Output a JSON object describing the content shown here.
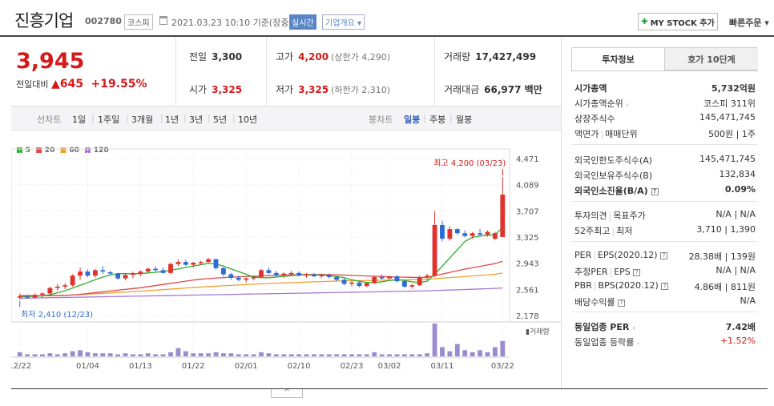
{
  "header": {
    "name": "진흥기업",
    "code": "002780",
    "market": "코스피",
    "datetime": "2021.03.23 10:10  기준(장중)",
    "realtime": "실시간",
    "overview": "기업개요 ▾",
    "mystock": "MY STOCK 추가",
    "quick_order": "빠른주문 ▾"
  },
  "price": {
    "current": "3,945",
    "change_label": "전일대비",
    "change_arrow": "▲",
    "change": "645",
    "change_pct": "+19.55%",
    "prev_close_label": "전일",
    "prev_close": "3,300",
    "open_label": "시가",
    "open": "3,325",
    "high_label": "고가",
    "high": "4,200",
    "high_sub": "(상한가 4,290)",
    "low_label": "저가",
    "low": "3,325",
    "low_sub": "(하한가 2,310)",
    "volume_label": "거래량",
    "volume": "17,427,499",
    "amount_label": "거래대금",
    "amount": "66,977 백만"
  },
  "period_tabs": {
    "line_label": "선차트",
    "line_items": [
      "1일",
      "1주일",
      "3개월",
      "1년",
      "3년",
      "5년",
      "10년"
    ],
    "candle_label": "봉차트",
    "candle_items": [
      "일봉",
      "주봉",
      "월봉"
    ],
    "candle_active": "일봉"
  },
  "chart_data": {
    "type": "candlestick",
    "legend": [
      {
        "name": "5",
        "color": "#2fae2f"
      },
      {
        "name": "20",
        "color": "#e04848"
      },
      {
        "name": "60",
        "color": "#f0a030"
      },
      {
        "name": "120",
        "color": "#a57ad6"
      }
    ],
    "y_ticks": [
      4471,
      4089,
      3707,
      3325,
      2943,
      2561,
      2178
    ],
    "y_tick_labels": [
      "4,471",
      "4,089",
      "3,707",
      "3,325",
      "2,943",
      "2,561",
      "2,178"
    ],
    "ylim": [
      2178,
      4471
    ],
    "x_tick_labels": [
      "12/22",
      "01/04",
      "01/13",
      "01/22",
      "02/01",
      "02/10",
      "02/23",
      "03/02",
      "03/11",
      "03/22"
    ],
    "x_tick_indices": [
      0,
      9,
      16,
      23,
      30,
      37,
      44,
      49,
      56,
      64
    ],
    "high_annotation": "최고 4,200 (03/23)",
    "low_annotation": "최저 2,410 (12/23)",
    "volume_label": "거래량",
    "candles": [
      [
        2440,
        2500,
        2410,
        2460
      ],
      [
        2460,
        2480,
        2420,
        2440
      ],
      [
        2440,
        2500,
        2430,
        2480
      ],
      [
        2480,
        2520,
        2440,
        2500
      ],
      [
        2500,
        2600,
        2470,
        2580
      ],
      [
        2580,
        2640,
        2540,
        2600
      ],
      [
        2600,
        2650,
        2560,
        2620
      ],
      [
        2620,
        2780,
        2600,
        2760
      ],
      [
        2760,
        2880,
        2700,
        2820
      ],
      [
        2820,
        2850,
        2740,
        2760
      ],
      [
        2760,
        2860,
        2730,
        2840
      ],
      [
        2840,
        2900,
        2790,
        2820
      ],
      [
        2810,
        2830,
        2760,
        2790
      ],
      [
        2790,
        2800,
        2700,
        2720
      ],
      [
        2720,
        2790,
        2690,
        2770
      ],
      [
        2770,
        2820,
        2720,
        2790
      ],
      [
        2790,
        2840,
        2750,
        2820
      ],
      [
        2820,
        2880,
        2800,
        2860
      ],
      [
        2860,
        2900,
        2820,
        2840
      ],
      [
        2840,
        2880,
        2790,
        2800
      ],
      [
        2800,
        2950,
        2780,
        2930
      ],
      [
        2930,
        3000,
        2900,
        2960
      ],
      [
        2960,
        2990,
        2900,
        2920
      ],
      [
        2920,
        2960,
        2880,
        2950
      ],
      [
        2950,
        2980,
        2920,
        2960
      ],
      [
        2960,
        3020,
        2940,
        3000
      ],
      [
        3000,
        3010,
        2850,
        2870
      ],
      [
        2870,
        2890,
        2750,
        2780
      ],
      [
        2780,
        2800,
        2700,
        2730
      ],
      [
        2730,
        2760,
        2680,
        2700
      ],
      [
        2700,
        2740,
        2660,
        2720
      ],
      [
        2720,
        2760,
        2690,
        2740
      ],
      [
        2740,
        2860,
        2720,
        2840
      ],
      [
        2840,
        2880,
        2780,
        2800
      ],
      [
        2800,
        2830,
        2740,
        2770
      ],
      [
        2770,
        2810,
        2730,
        2790
      ],
      [
        2790,
        2830,
        2760,
        2800
      ],
      [
        2800,
        2820,
        2750,
        2760
      ],
      [
        2760,
        2800,
        2730,
        2780
      ],
      [
        2780,
        2800,
        2740,
        2750
      ],
      [
        2750,
        2790,
        2720,
        2770
      ],
      [
        2770,
        2790,
        2720,
        2740
      ],
      [
        2740,
        2760,
        2680,
        2700
      ],
      [
        2700,
        2720,
        2620,
        2640
      ],
      [
        2640,
        2680,
        2600,
        2660
      ],
      [
        2660,
        2680,
        2590,
        2610
      ],
      [
        2610,
        2660,
        2590,
        2650
      ],
      [
        2650,
        2760,
        2640,
        2740
      ],
      [
        2740,
        2780,
        2700,
        2720
      ],
      [
        2720,
        2760,
        2690,
        2750
      ],
      [
        2750,
        2770,
        2660,
        2680
      ],
      [
        2680,
        2700,
        2580,
        2600
      ],
      [
        2600,
        2640,
        2570,
        2620
      ],
      [
        2620,
        2760,
        2610,
        2740
      ],
      [
        2740,
        2790,
        2700,
        2760
      ],
      [
        2760,
        3700,
        2740,
        3500
      ],
      [
        3500,
        3560,
        3260,
        3300
      ],
      [
        3300,
        3480,
        3270,
        3440
      ],
      [
        3440,
        3460,
        3360,
        3380
      ],
      [
        3380,
        3420,
        3320,
        3340
      ],
      [
        3340,
        3400,
        3300,
        3380
      ],
      [
        3380,
        3440,
        3340,
        3360
      ],
      [
        3360,
        3420,
        3330,
        3400
      ],
      [
        3300,
        3400,
        3280,
        3380
      ],
      [
        3325,
        4200,
        3325,
        3945
      ]
    ],
    "volume": [
      4,
      2,
      2,
      2,
      3,
      2,
      3,
      5,
      6,
      4,
      3,
      3,
      3,
      2,
      3,
      2,
      2,
      3,
      2,
      2,
      4,
      8,
      5,
      3,
      3,
      3,
      4,
      3,
      3,
      2,
      2,
      2,
      4,
      3,
      2,
      2,
      2,
      2,
      2,
      2,
      2,
      2,
      2,
      2,
      2,
      2,
      2,
      4,
      2,
      2,
      2,
      2,
      2,
      2,
      3,
      32,
      9,
      5,
      12,
      6,
      4,
      6,
      4,
      9,
      15
    ],
    "ma5": [
      2450,
      2455,
      2460,
      2465,
      2480,
      2510,
      2540,
      2580,
      2620,
      2660,
      2700,
      2740,
      2770,
      2790,
      2790,
      2790,
      2790,
      2800,
      2810,
      2820,
      2840,
      2860,
      2880,
      2900,
      2920,
      2940,
      2930,
      2900,
      2860,
      2820,
      2780,
      2740,
      2730,
      2730,
      2740,
      2750,
      2760,
      2770,
      2770,
      2770,
      2770,
      2760,
      2750,
      2730,
      2700,
      2680,
      2660,
      2660,
      2670,
      2690,
      2700,
      2690,
      2670,
      2660,
      2680,
      2780,
      2900,
      3020,
      3140,
      3260,
      3320,
      3340,
      3350,
      3360,
      3460
    ],
    "ma20": [
      2470,
      2470,
      2468,
      2466,
      2466,
      2468,
      2472,
      2478,
      2488,
      2500,
      2512,
      2524,
      2536,
      2548,
      2560,
      2572,
      2584,
      2600,
      2616,
      2632,
      2648,
      2664,
      2680,
      2696,
      2708,
      2718,
      2726,
      2732,
      2738,
      2744,
      2748,
      2752,
      2756,
      2760,
      2764,
      2768,
      2772,
      2774,
      2776,
      2778,
      2778,
      2776,
      2772,
      2768,
      2764,
      2760,
      2756,
      2752,
      2748,
      2744,
      2740,
      2738,
      2736,
      2734,
      2736,
      2760,
      2784,
      2808,
      2832,
      2856,
      2876,
      2896,
      2916,
      2936,
      2970
    ],
    "ma60": [
      2460,
      2462,
      2464,
      2466,
      2468,
      2470,
      2474,
      2478,
      2484,
      2490,
      2496,
      2502,
      2508,
      2514,
      2520,
      2526,
      2532,
      2540,
      2548,
      2556,
      2564,
      2572,
      2580,
      2588,
      2594,
      2600,
      2606,
      2612,
      2618,
      2624,
      2630,
      2636,
      2642,
      2646,
      2650,
      2654,
      2658,
      2662,
      2666,
      2670,
      2674,
      2678,
      2682,
      2684,
      2686,
      2688,
      2690,
      2692,
      2694,
      2696,
      2698,
      2700,
      2702,
      2704,
      2708,
      2716,
      2724,
      2732,
      2740,
      2748,
      2756,
      2764,
      2772,
      2780,
      2800
    ],
    "ma120": [
      2430,
      2432,
      2434,
      2436,
      2438,
      2440,
      2442,
      2444,
      2446,
      2448,
      2450,
      2452,
      2454,
      2456,
      2458,
      2460,
      2462,
      2464,
      2466,
      2468,
      2470,
      2472,
      2474,
      2476,
      2478,
      2480,
      2482,
      2484,
      2486,
      2488,
      2490,
      2492,
      2494,
      2496,
      2498,
      2500,
      2502,
      2504,
      2506,
      2508,
      2510,
      2512,
      2514,
      2516,
      2518,
      2520,
      2522,
      2524,
      2526,
      2528,
      2530,
      2532,
      2534,
      2536,
      2538,
      2542,
      2546,
      2550,
      2554,
      2558,
      2562,
      2566,
      2570,
      2574,
      2580
    ]
  },
  "right_panel": {
    "tab_info": "투자정보",
    "tab_hoga": "호가 10단계",
    "market_cap_label": "시가총액",
    "market_cap": "5,732억원",
    "rank_label": "시가총액순위",
    "rank": "코스피 311위",
    "shares_label": "상장주식수",
    "shares": "145,471,745",
    "par_label": "액면가",
    "unit_label": "매매단위",
    "par_unit": "500원 | 1주",
    "foreign_limit_label": "외국인한도주식수(A)",
    "foreign_limit": "145,471,745",
    "foreign_hold_label": "외국인보유주식수(B)",
    "foreign_hold": "132,834",
    "foreign_rate_label": "외국인소진율(B/A)",
    "foreign_rate": "0.09%",
    "opinion_label": "투자의견",
    "target_label": "목표주가",
    "opinion_target": "N/A | N/A",
    "w52_high_label": "52주최고",
    "w52_low_label": "최저",
    "w52": "3,710 | 1,390",
    "per_label": "PER",
    "eps_label": "EPS(2020.12)",
    "per_eps": "28.38배 | 139원",
    "est_per_label": "추정PER",
    "est_eps_label": "EPS",
    "est_per_eps": "N/A | N/A",
    "pbr_label": "PBR",
    "bps_label": "BPS(2020.12)",
    "pbr_bps": "4.86배 | 811원",
    "div_label": "배당수익률",
    "div": "N/A",
    "ind_per_label": "동일업종 PER",
    "ind_per": "7.42배",
    "ind_change_label": "동일업종 등락률",
    "ind_change": "+1.52%"
  },
  "collapse": "^"
}
